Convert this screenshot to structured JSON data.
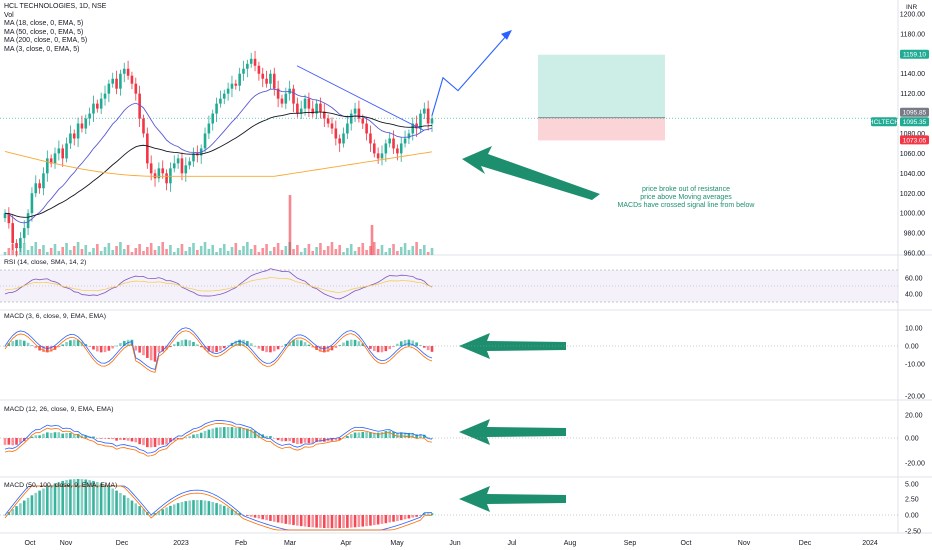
{
  "header": {
    "symbol_line": "HCL TECHNOLOGIES, 1D, NSE",
    "vol_label": "Vol",
    "ma_labels": [
      "MA (18, close, 0, EMA, 5)",
      "MA (50, close, 0, EMA, 5)",
      "MA (200, close, 0, EMA, 5)",
      "MA (3, close, 0, EMA, 5)"
    ],
    "currency": "INR"
  },
  "price_axis": {
    "ticks": [
      "1200.00",
      "1180.00",
      "1160.00",
      "1140.00",
      "1120.00",
      "1080.00",
      "1060.00",
      "1040.00",
      "1020.00",
      "1000.00",
      "980.00",
      "960.00"
    ]
  },
  "badges": [
    {
      "text": "1159.10",
      "color": "#22ab94"
    },
    {
      "text": "1095.85",
      "color": "#787b86"
    },
    {
      "text": "1095.35",
      "color": "#22ab94"
    },
    {
      "text": "HCLTECH",
      "color": "#22ab94"
    },
    {
      "text": "1073.05",
      "color": "#f23645"
    }
  ],
  "annotation": {
    "lines": [
      "price broke out of resistance",
      "price above Moving averages",
      "MACDs have crossed signal line from below"
    ]
  },
  "panes": {
    "rsi": {
      "label": "RSI (14, close, SMA, 14, 2)",
      "ticks": [
        "60.00",
        "40.00"
      ]
    },
    "macd1": {
      "label": "MACD (3, 6, close, 9, EMA, EMA)",
      "ticks": [
        "10.00",
        "0.00",
        "-10.00",
        "-20.00"
      ]
    },
    "macd2": {
      "label": "MACD (12, 26, close, 9, EMA, EMA)",
      "ticks": [
        "20.00",
        "0.00",
        "-20.00"
      ]
    },
    "macd3": {
      "label": "MACD (50, 100, close, 9, EMA, EMA)",
      "ticks": [
        "5.00",
        "2.50",
        "0.00",
        "-2.50"
      ]
    }
  },
  "x_axis": {
    "ticks": [
      "Oct",
      "Nov",
      "Dec",
      "2023",
      "Feb",
      "Mar",
      "Apr",
      "May",
      "Jun",
      "Jul",
      "Aug",
      "Sep",
      "Oct",
      "Nov",
      "Dec",
      "2024"
    ]
  },
  "colors": {
    "up": "#22ab94",
    "down": "#f23645",
    "ema18": "#5b59d6",
    "ema50": "#131722",
    "ema200": "#f7a830",
    "arrow": "#1e8f6e",
    "proj": "#2962ff",
    "target_zone": "#cdeee6",
    "stop_zone": "#fbd4d8"
  },
  "chart_data": {
    "type": "candlestick",
    "title": "HCL TECHNOLOGIES, 1D, NSE",
    "ylim": [
      955,
      1208
    ],
    "last_price": 1095.35,
    "target_price": 1159.1,
    "entry_price": 1095.85,
    "stop_price": 1073.05,
    "closes": [
      1000,
      990,
      970,
      965,
      975,
      985,
      1000,
      1020,
      1030,
      1025,
      1040,
      1055,
      1050,
      1060,
      1065,
      1055,
      1070,
      1080,
      1075,
      1090,
      1085,
      1095,
      1100,
      1110,
      1105,
      1115,
      1120,
      1130,
      1135,
      1125,
      1140,
      1145,
      1138,
      1130,
      1120,
      1095,
      1080,
      1050,
      1040,
      1035,
      1045,
      1040,
      1030,
      1045,
      1050,
      1055,
      1040,
      1048,
      1052,
      1060,
      1058,
      1065,
      1080,
      1090,
      1100,
      1110,
      1115,
      1120,
      1125,
      1130,
      1128,
      1140,
      1145,
      1150,
      1155,
      1148,
      1140,
      1135,
      1130,
      1140,
      1125,
      1115,
      1110,
      1120,
      1125,
      1110,
      1100,
      1105,
      1115,
      1105,
      1100,
      1110,
      1102,
      1095,
      1090,
      1085,
      1075,
      1070,
      1080,
      1090,
      1100,
      1105,
      1095,
      1090,
      1080,
      1070,
      1060,
      1055,
      1060,
      1070,
      1075,
      1065,
      1060,
      1070,
      1075,
      1080,
      1090,
      1085,
      1100,
      1105,
      1090,
      1095
    ],
    "ema_labels": [
      "MA 18",
      "MA 50",
      "MA 200"
    ]
  }
}
